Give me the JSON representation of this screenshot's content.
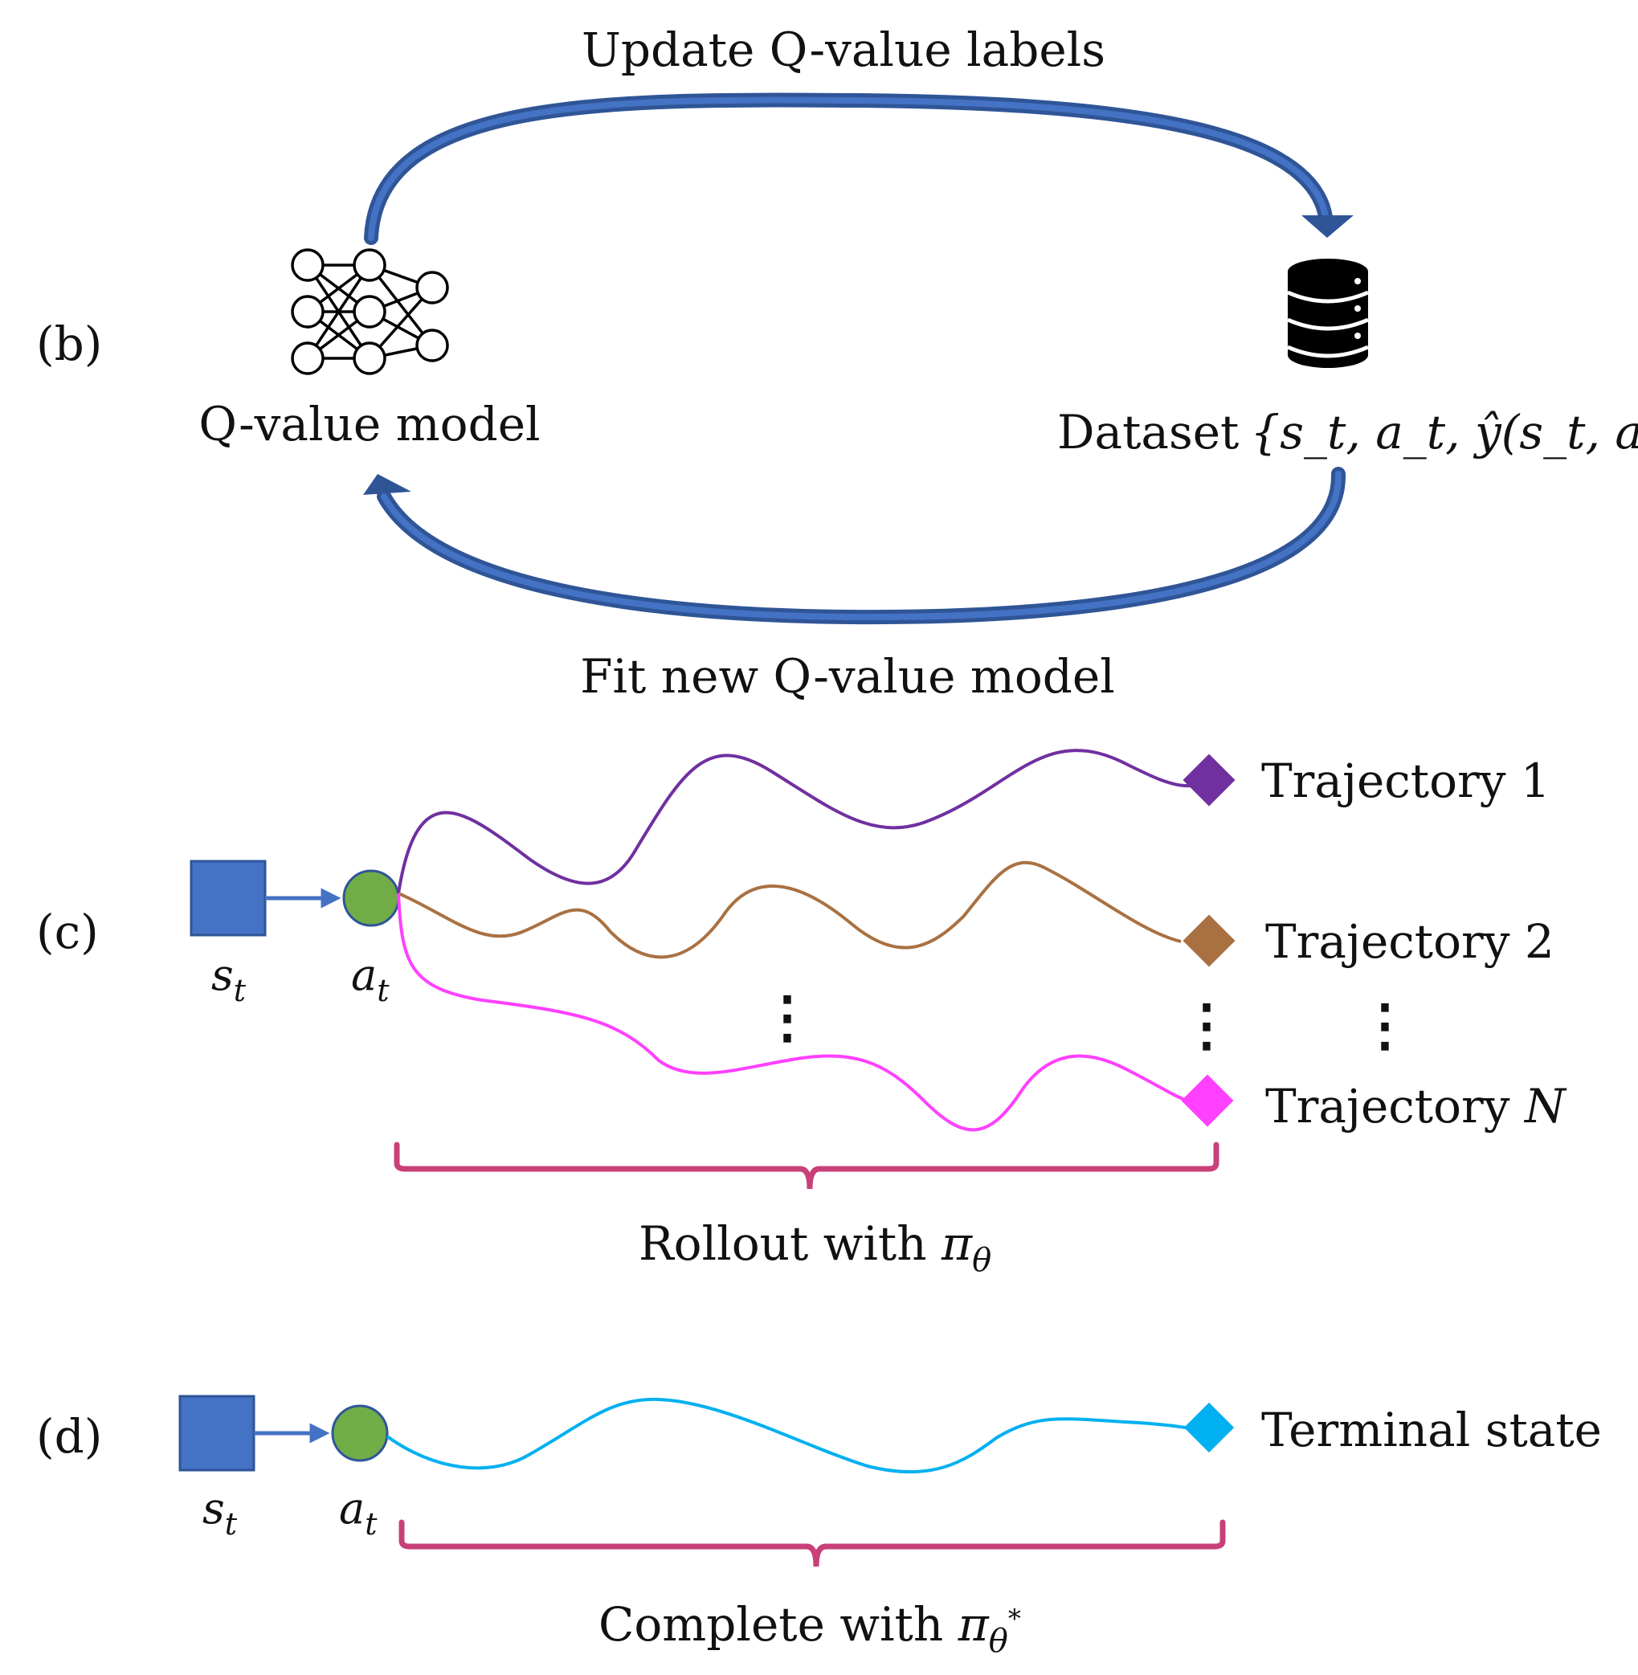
{
  "panel_b": {
    "tag": "(b)",
    "top_arrow_label": "Update Q-value labels",
    "bottom_arrow_label": "Fit new Q-value model",
    "model_label": "Q-value model",
    "dataset_label": "Dataset",
    "dataset_math": "{s_t, a_t, ŷ(s_t, a_t)}",
    "model_icon": "neural-network-icon",
    "dataset_icon": "database-icon",
    "arrow_color": "#2f5597"
  },
  "panel_c": {
    "tag": "(c)",
    "state_label": "s",
    "action_label": "a",
    "subscript": "t",
    "trajectories": [
      {
        "label": "Trajectory 1",
        "color": "#7030a0"
      },
      {
        "label": "Trajectory 2",
        "color": "#a97142"
      },
      {
        "label": "Trajectory ",
        "label_italic": "N",
        "color": "#ff40ff"
      }
    ],
    "ellipsis": "⋮",
    "brace_label": "Rollout with ",
    "brace_math": "π",
    "brace_sub": "θ"
  },
  "panel_d": {
    "tag": "(d)",
    "state_label": "s",
    "action_label": "a",
    "subscript": "t",
    "terminal_label": "Terminal state",
    "terminal_color": "#00b0f0",
    "brace_label": "Complete with ",
    "brace_math": "π",
    "brace_sub": "θ",
    "brace_sup": "*"
  },
  "colors": {
    "state_fill": "#4472c4",
    "action_fill": "#70ad47",
    "brace": "#c8407a"
  }
}
